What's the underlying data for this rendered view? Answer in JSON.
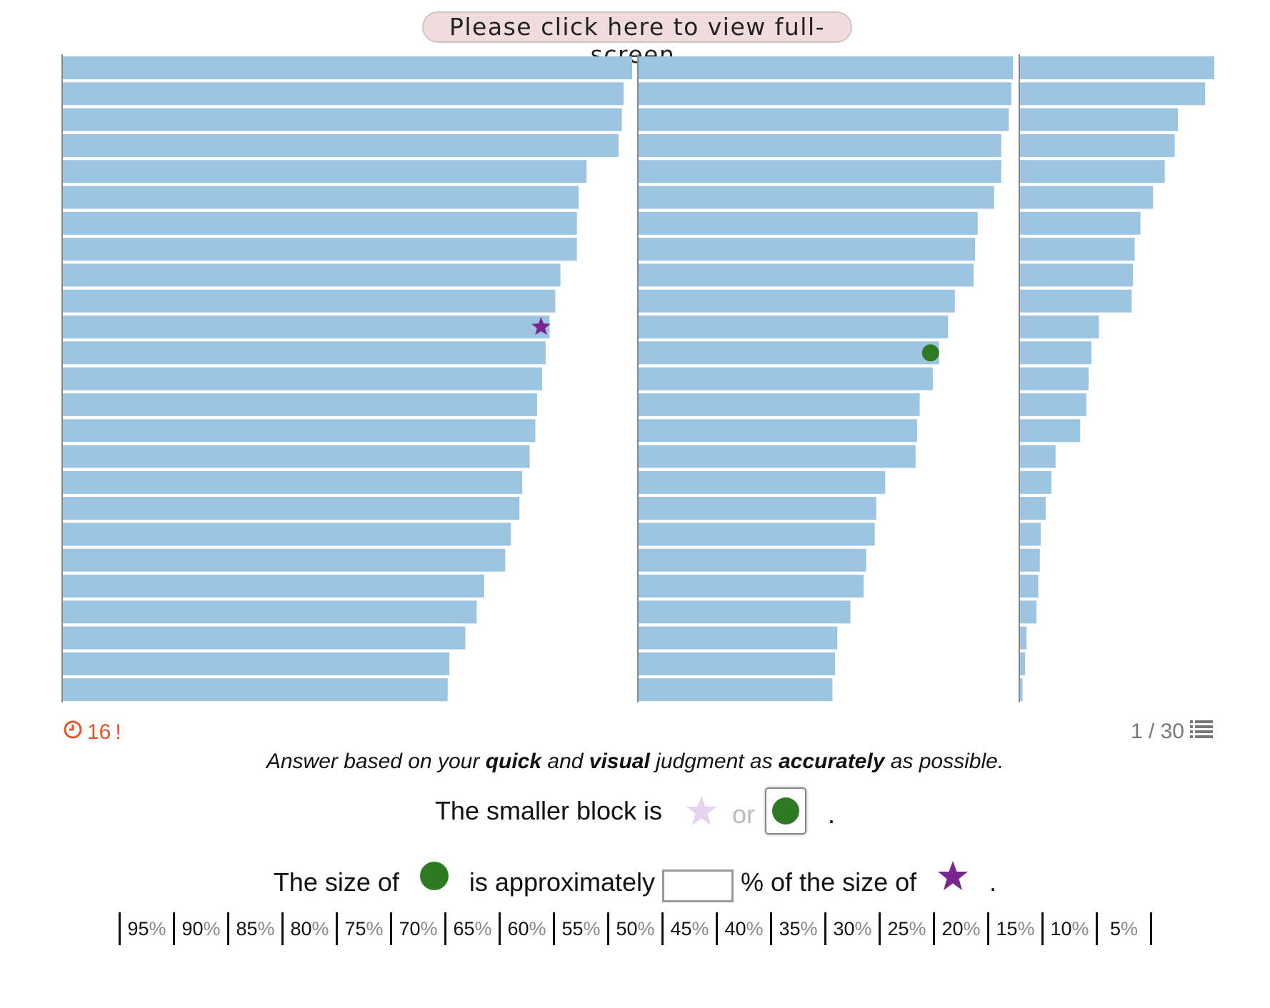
{
  "fullscreen_button": {
    "label": "Please click here to view full-screen."
  },
  "chart_data": {
    "type": "bar",
    "orientation": "horizontal",
    "panels": [
      {
        "values": [
          100,
          98.5,
          98.2,
          97.6,
          92,
          90.6,
          90.3,
          90.3,
          87.4,
          86.5,
          85.5,
          84.8,
          84.2,
          83.3,
          83,
          82,
          80.7,
          80.2,
          78.7,
          77.7,
          74,
          72.7,
          70.7,
          67.9,
          67.6
        ],
        "marker_bar": 10,
        "marker": "star"
      },
      {
        "values": [
          100,
          99.6,
          98.9,
          96.9,
          96.9,
          95,
          90.6,
          89.9,
          89.5,
          84.5,
          82.7,
          80.3,
          78.6,
          75.1,
          74.4,
          74,
          65.9,
          63.5,
          63.1,
          60.8,
          60.1,
          56.6,
          53.1,
          52.5,
          51.8
        ],
        "marker_bar": 11,
        "marker": "circle"
      },
      {
        "values": [
          100,
          95.3,
          81.3,
          79.6,
          74.5,
          68.5,
          62,
          59,
          58.1,
          57.5,
          40.6,
          36.8,
          35.3,
          34.1,
          31,
          18.3,
          16.2,
          13.2,
          10.7,
          10.2,
          9.4,
          8.5,
          3.4,
          2.6,
          1.3
        ],
        "marker_bar": null,
        "marker": null
      }
    ]
  },
  "timer": {
    "value": "16",
    "suffix": "!"
  },
  "progress": {
    "text": "1 / 30"
  },
  "instruction": {
    "part1": "Answer based on your ",
    "quick": "quick",
    "part2": " and ",
    "visual": "visual",
    "part3": " judgment as ",
    "accurately": "accurately",
    "part4": " as possible."
  },
  "question1": {
    "prefix": "The smaller block is",
    "or": "or",
    "suffix": ".",
    "selected": "circle"
  },
  "question2": {
    "prefix": "The size of",
    "middle": "is approximately",
    "after_input": "% of the size of",
    "suffix": "."
  },
  "answer": {
    "value": ""
  },
  "scale": [
    {
      "n": "95",
      "p": "%"
    },
    {
      "n": "90",
      "p": "%"
    },
    {
      "n": "85",
      "p": "%"
    },
    {
      "n": "80",
      "p": "%"
    },
    {
      "n": "75",
      "p": "%"
    },
    {
      "n": "70",
      "p": "%"
    },
    {
      "n": "65",
      "p": "%"
    },
    {
      "n": "60",
      "p": "%"
    },
    {
      "n": "55",
      "p": "%"
    },
    {
      "n": "50",
      "p": "%"
    },
    {
      "n": "45",
      "p": "%"
    },
    {
      "n": "40",
      "p": "%"
    },
    {
      "n": "35",
      "p": "%"
    },
    {
      "n": "30",
      "p": "%"
    },
    {
      "n": "25",
      "p": "%"
    },
    {
      "n": "20",
      "p": "%"
    },
    {
      "n": "15",
      "p": "%"
    },
    {
      "n": "10",
      "p": "%"
    },
    {
      "n": "5",
      "p": "%"
    }
  ],
  "colors": {
    "bar": "#9dc4e0",
    "star": "#7b2590",
    "star_faded": "#e6d3ec",
    "circle": "#2e7a22",
    "axis": "#888888",
    "timer": "#e2542e"
  },
  "icons": {
    "timer": "clock-icon",
    "progress": "list-icon"
  }
}
